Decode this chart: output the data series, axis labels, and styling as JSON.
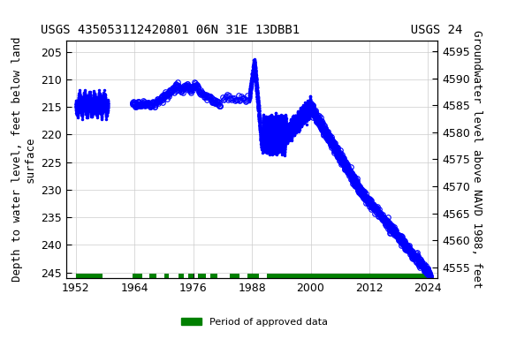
{
  "title_left": "USGS 435053112420801 06N 31E 13DBB1",
  "title_right": "USGS 24",
  "ylabel_left": "Depth to water level, feet below land\nsurface",
  "ylabel_right": "Groundwater level above NAVD 1988, feet",
  "ylim_left": [
    246,
    203
  ],
  "ylim_right": [
    4553,
    4597
  ],
  "xlim": [
    1950,
    2026
  ],
  "xticks": [
    1952,
    1964,
    1976,
    1988,
    2000,
    2012,
    2024
  ],
  "yticks_left": [
    205,
    210,
    215,
    220,
    225,
    230,
    235,
    240,
    245
  ],
  "yticks_right": [
    4595,
    4590,
    4585,
    4580,
    4575,
    4570,
    4565,
    4560,
    4555
  ],
  "background_color": "#ffffff",
  "plot_bg_color": "#ffffff",
  "grid_color": "#cccccc",
  "data_color": "#0000ff",
  "approved_color": "#008000",
  "legend_label": "Period of approved data",
  "title_fontsize": 10,
  "axis_fontsize": 9,
  "tick_fontsize": 9,
  "approved_periods": [
    [
      1952.0,
      1957.5
    ],
    [
      1963.5,
      1965.5
    ],
    [
      1967.0,
      1968.5
    ],
    [
      1970.0,
      1971.0
    ],
    [
      1973.0,
      1974.0
    ],
    [
      1975.0,
      1976.0
    ],
    [
      1977.0,
      1978.5
    ],
    [
      1979.5,
      1981.0
    ],
    [
      1983.5,
      1985.5
    ],
    [
      1987.0,
      1989.5
    ],
    [
      1991.0,
      2024.8
    ]
  ]
}
